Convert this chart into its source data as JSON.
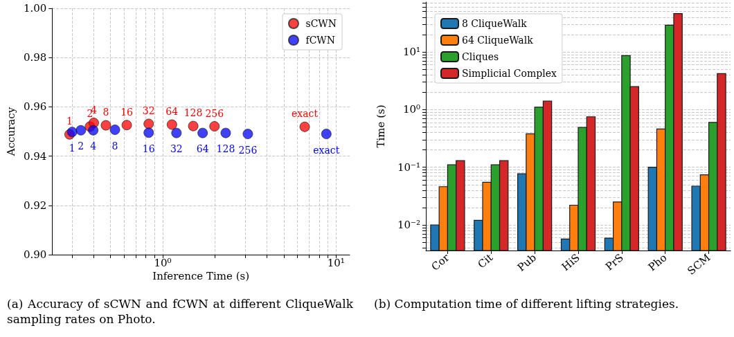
{
  "chart_data": [
    {
      "type": "scatter",
      "xlabel": "Inference Time (s)",
      "ylabel": "Accuracy",
      "log": "x",
      "grid": true,
      "legend": "top right",
      "marker": "circle",
      "xlim": [
        0.23,
        12
      ],
      "ylim": [
        0.9,
        1.0
      ],
      "xticks": [
        {
          "value": 0.3,
          "label": null
        },
        {
          "value": 0.4,
          "label": null
        },
        {
          "value": 0.5,
          "label": null
        },
        {
          "value": 0.6,
          "label": null
        },
        {
          "value": 0.7,
          "label": null
        },
        {
          "value": 0.8,
          "label": null
        },
        {
          "value": 0.9,
          "label": null
        },
        {
          "value": 1,
          "label": "10⁰"
        },
        {
          "value": 2,
          "label": null
        },
        {
          "value": 3,
          "label": null
        },
        {
          "value": 4,
          "label": null
        },
        {
          "value": 5,
          "label": null
        },
        {
          "value": 6,
          "label": null
        },
        {
          "value": 7,
          "label": null
        },
        {
          "value": 8,
          "label": null
        },
        {
          "value": 9,
          "label": null
        },
        {
          "value": 10,
          "label": "10¹"
        }
      ],
      "yticks": [
        {
          "value": 0.9,
          "label": "0.90"
        },
        {
          "value": 0.92,
          "label": "0.92"
        },
        {
          "value": 0.94,
          "label": "0.94"
        },
        {
          "value": 0.96,
          "label": "0.96"
        },
        {
          "value": 0.98,
          "label": "0.98"
        },
        {
          "value": 1.0,
          "label": "1.00"
        }
      ],
      "series": [
        {
          "name": "sCWN",
          "color": "#ff0000",
          "x": [
            0.29,
            0.38,
            0.4,
            0.47,
            0.62,
            0.83,
            1.13,
            1.5,
            1.99,
            6.6
          ],
          "values": [
            0.9488,
            0.952,
            0.9535,
            0.9525,
            0.9526,
            0.9531,
            0.9528,
            0.9522,
            0.9521,
            0.9519
          ]
        },
        {
          "name": "fCWN",
          "color": "#0000ff",
          "x": [
            0.3,
            0.337,
            0.397,
            0.53,
            0.83,
            1.2,
            1.7,
            2.31,
            3.1,
            8.8
          ],
          "values": [
            0.9498,
            0.9505,
            0.9505,
            0.9507,
            0.9495,
            0.9494,
            0.9494,
            0.9494,
            0.949,
            0.949
          ]
        }
      ],
      "annotations": [
        {
          "text": "1",
          "x": 0.29,
          "y": 0.9488
        },
        {
          "text": "2",
          "x": 0.38,
          "y": 0.952
        },
        {
          "text": "4",
          "x": 0.4,
          "y": 0.9535
        },
        {
          "text": "8",
          "x": 0.47,
          "y": 0.9525
        },
        {
          "text": "16",
          "x": 0.62,
          "y": 0.9526
        },
        {
          "text": "32",
          "x": 0.83,
          "y": 0.9531
        },
        {
          "text": "64",
          "x": 1.13,
          "y": 0.9528
        },
        {
          "text": "128",
          "x": 1.5,
          "y": 0.9522
        },
        {
          "text": "256",
          "x": 1.99,
          "y": 0.9521
        },
        {
          "text": "exact",
          "x": 6.6,
          "y": 0.9519
        },
        {
          "text": "1",
          "x": 0.3,
          "y": 0.9498
        },
        {
          "text": "2",
          "x": 0.337,
          "y": 0.9505
        },
        {
          "text": "4",
          "x": 0.397,
          "y": 0.9505
        },
        {
          "text": "8",
          "x": 0.53,
          "y": 0.9507
        },
        {
          "text": "16",
          "x": 0.83,
          "y": 0.9495
        },
        {
          "text": "32",
          "x": 1.2,
          "y": 0.9494
        },
        {
          "text": "64",
          "x": 1.7,
          "y": 0.9494
        },
        {
          "text": "128",
          "x": 2.31,
          "y": 0.9494
        },
        {
          "text": "256",
          "x": 3.1,
          "y": 0.949
        },
        {
          "text": "exact",
          "x": 8.8,
          "y": 0.949
        },
        "(a) Accuracy of sCWN and fCWN at different CliqueWalk sampling rates on Photo."
      ]
    },
    {
      "type": "bar",
      "ylabel": "Time (s)",
      "log": "y",
      "grid": "y",
      "legend": "top left",
      "categories": [
        "Cor",
        "Cit",
        "Pub",
        "HiS",
        "PrS",
        "Pho",
        "SCM"
      ],
      "ylim": [
        0.0036,
        73
      ],
      "yticks": [
        {
          "value": 0.004,
          "label": null
        },
        {
          "value": 0.005,
          "label": null
        },
        {
          "value": 0.006,
          "label": null
        },
        {
          "value": 0.007,
          "label": null
        },
        {
          "value": 0.008,
          "label": null
        },
        {
          "value": 0.009,
          "label": null
        },
        {
          "value": 0.01,
          "label": "10⁻²"
        },
        {
          "value": 0.02,
          "label": null
        },
        {
          "value": 0.03,
          "label": null
        },
        {
          "value": 0.04,
          "label": null
        },
        {
          "value": 0.05,
          "label": null
        },
        {
          "value": 0.06,
          "label": null
        },
        {
          "value": 0.07,
          "label": null
        },
        {
          "value": 0.08,
          "label": null
        },
        {
          "value": 0.09,
          "label": null
        },
        {
          "value": 0.1,
          "label": "10⁻¹"
        },
        {
          "value": 0.2,
          "label": null
        },
        {
          "value": 0.3,
          "label": null
        },
        {
          "value": 0.4,
          "label": null
        },
        {
          "value": 0.5,
          "label": null
        },
        {
          "value": 0.6,
          "label": null
        },
        {
          "value": 0.7,
          "label": null
        },
        {
          "value": 0.8,
          "label": null
        },
        {
          "value": 0.9,
          "label": null
        },
        {
          "value": 1,
          "label": "10⁰"
        },
        {
          "value": 2,
          "label": null
        },
        {
          "value": 3,
          "label": null
        },
        {
          "value": 4,
          "label": null
        },
        {
          "value": 5,
          "label": null
        },
        {
          "value": 6,
          "label": null
        },
        {
          "value": 7,
          "label": null
        },
        {
          "value": 8,
          "label": null
        },
        {
          "value": 9,
          "label": null
        },
        {
          "value": 10,
          "label": "10¹"
        },
        {
          "value": 20,
          "label": null
        },
        {
          "value": 30,
          "label": null
        },
        {
          "value": 40,
          "label": null
        },
        {
          "value": 50,
          "label": null
        },
        {
          "value": 60,
          "label": null
        },
        {
          "value": 70,
          "label": null
        }
      ],
      "series": [
        {
          "name": "8 CliqueWalk",
          "color": "#1f77b4",
          "values": [
            0.01,
            0.012,
            0.077,
            0.0057,
            0.0059,
            0.1,
            0.047
          ]
        },
        {
          "name": "64 CliqueWalk",
          "color": "#ff7f0e",
          "values": [
            0.046,
            0.055,
            0.38,
            0.022,
            0.025,
            0.46,
            0.074
          ]
        },
        {
          "name": "Cliques",
          "color": "#2ca02c",
          "values": [
            0.11,
            0.11,
            1.1,
            0.49,
            8.6,
            29,
            0.6
          ]
        },
        {
          "name": "Simplicial Complex",
          "color": "#d62728",
          "values": [
            0.13,
            0.13,
            1.4,
            0.75,
            2.5,
            46,
            4.2
          ]
        }
      ],
      "annotations": [
        "(b) Computation time of different lifting strategies."
      ]
    }
  ]
}
